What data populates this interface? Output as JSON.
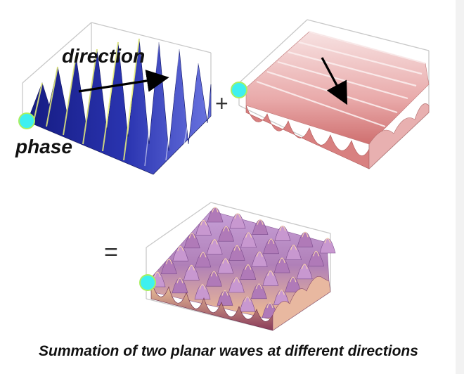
{
  "labels": {
    "direction": "direction",
    "phase": "phase",
    "plus": "+",
    "equals": "="
  },
  "caption": "Summation of two planar waves at different directions",
  "colors": {
    "wave1_dark": "#1a1f8c",
    "wave1_light": "#5b64d8",
    "wave1_edge": "#e8f07a",
    "wave2_dark": "#d9888a",
    "wave2_light": "#f6dcdc",
    "sum_dark": "#7a4a8c",
    "sum_light": "#f0b890",
    "phase_marker": "#3ef0f0",
    "box_line": "#c8c8c8"
  },
  "icons": {
    "direction_arrow": "arrow-icon",
    "phase_marker": "circle-marker-icon"
  }
}
